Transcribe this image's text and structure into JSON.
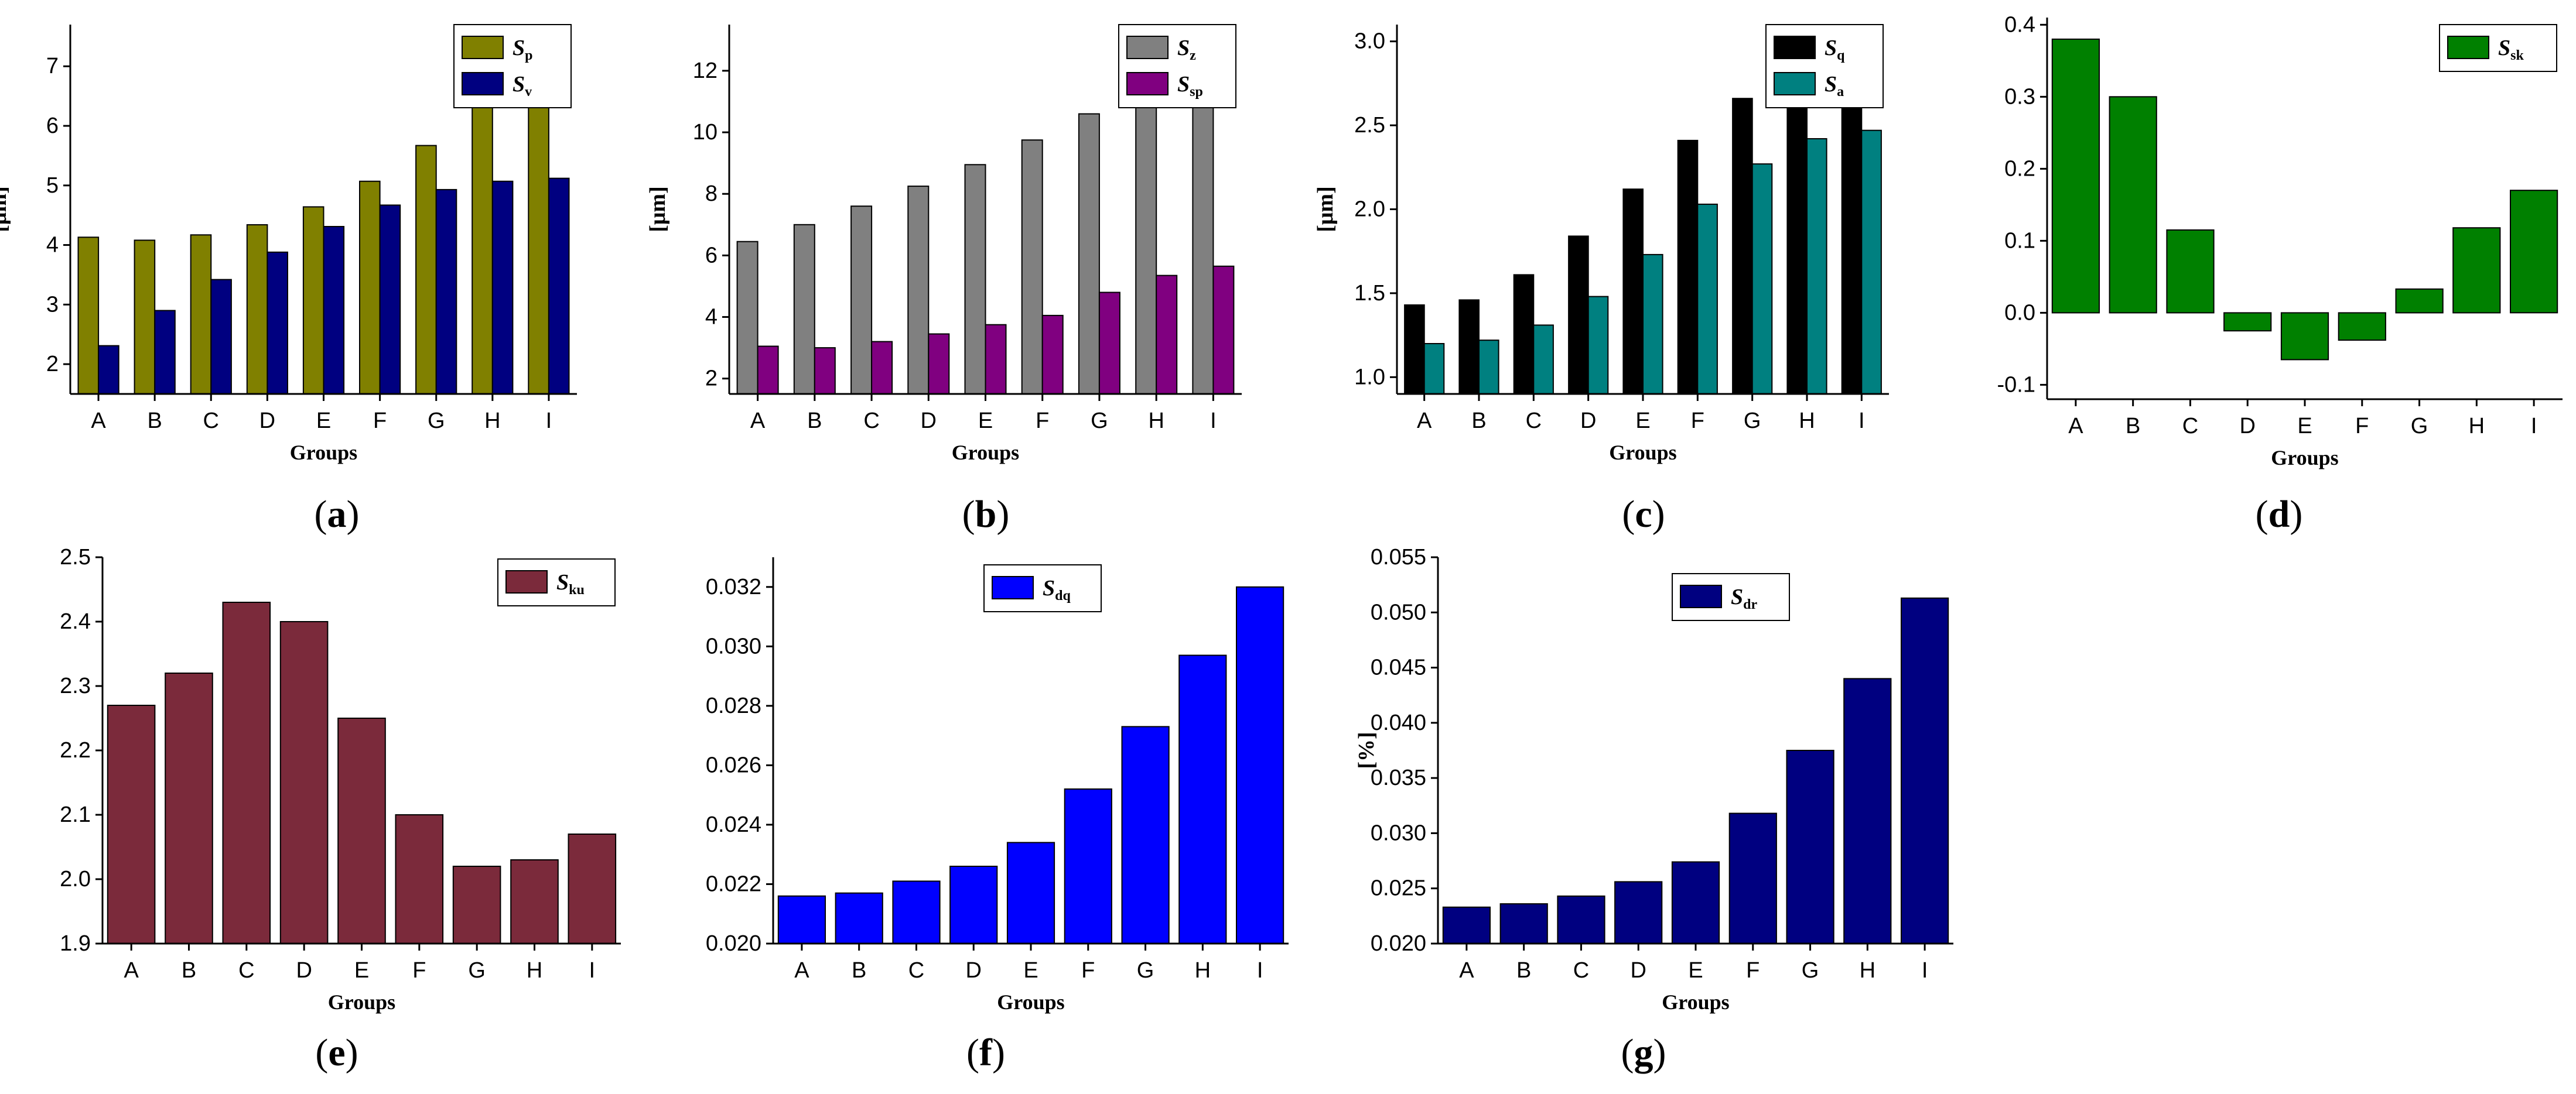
{
  "colors": {
    "a_sp": "#808000",
    "a_sv": "#000080",
    "b_sz": "#808080",
    "b_ssp": "#800080",
    "c_sq": "#000000",
    "c_sa": "#008080",
    "d_ssk": "#008000",
    "e_sku": "#7b2a3b",
    "f_sdq": "#0000ff",
    "g_sdr": "#000080"
  },
  "chart_data": [
    {
      "id": "a",
      "panel_label": "(a)",
      "type": "bar",
      "categories": [
        "A",
        "B",
        "C",
        "D",
        "E",
        "F",
        "G",
        "H",
        "I"
      ],
      "series": [
        {
          "name": "Sp",
          "sym": "S",
          "sub": "p",
          "values": [
            4.13,
            4.08,
            4.17,
            4.34,
            4.64,
            5.07,
            5.67,
            6.43,
            7.34
          ]
        },
        {
          "name": "Sv",
          "sym": "S",
          "sub": "v",
          "values": [
            2.31,
            2.9,
            3.42,
            3.88,
            4.31,
            4.67,
            4.93,
            5.07,
            5.12
          ]
        }
      ],
      "xlabel": "Groups",
      "ylabel": "[μm]",
      "ylim": [
        1.5,
        7.7
      ],
      "yticks": [
        2,
        3,
        4,
        5,
        6,
        7
      ],
      "ytick_labels": [
        "2",
        "3",
        "4",
        "5",
        "6",
        "7"
      ],
      "legend": "top-right"
    },
    {
      "id": "b",
      "panel_label": "(b)",
      "type": "bar",
      "categories": [
        "A",
        "B",
        "C",
        "D",
        "E",
        "F",
        "G",
        "H",
        "I"
      ],
      "series": [
        {
          "name": "Sz",
          "sym": "S",
          "sub": "z",
          "values": [
            6.45,
            7.0,
            7.6,
            8.25,
            8.95,
            9.75,
            10.6,
            11.5,
            12.45
          ]
        },
        {
          "name": "Ssp",
          "sym": "S",
          "sub": "sp",
          "values": [
            3.05,
            3.0,
            3.2,
            3.45,
            3.75,
            4.05,
            4.8,
            5.35,
            5.65
          ]
        }
      ],
      "xlabel": "Groups",
      "ylabel": "[μm]",
      "ylim": [
        1.5,
        13.5
      ],
      "yticks": [
        2,
        4,
        6,
        8,
        10,
        12
      ],
      "ytick_labels": [
        "2",
        "4",
        "6",
        "8",
        "10",
        "12"
      ],
      "legend": "top-right"
    },
    {
      "id": "c",
      "panel_label": "(c)",
      "type": "bar",
      "categories": [
        "A",
        "B",
        "C",
        "D",
        "E",
        "F",
        "G",
        "H",
        "I"
      ],
      "series": [
        {
          "name": "Sq",
          "sym": "S",
          "sub": "q",
          "values": [
            1.43,
            1.46,
            1.61,
            1.84,
            2.12,
            2.41,
            2.66,
            2.83,
            2.9
          ]
        },
        {
          "name": "Sa",
          "sym": "S",
          "sub": "a",
          "values": [
            1.2,
            1.22,
            1.31,
            1.48,
            1.73,
            2.03,
            2.27,
            2.42,
            2.47
          ]
        }
      ],
      "xlabel": "Groups",
      "ylabel": "[μm]",
      "ylim": [
        0.9,
        3.1
      ],
      "yticks": [
        1.0,
        1.5,
        2.0,
        2.5,
        3.0
      ],
      "ytick_labels": [
        "1.0",
        "1.5",
        "2.0",
        "2.5",
        "3.0"
      ],
      "legend": "top-right"
    },
    {
      "id": "d",
      "panel_label": "(d)",
      "type": "bar",
      "categories": [
        "A",
        "B",
        "C",
        "D",
        "E",
        "F",
        "G",
        "H",
        "I"
      ],
      "series": [
        {
          "name": "Ssk",
          "sym": "S",
          "sub": "sk",
          "values": [
            0.38,
            0.3,
            0.115,
            -0.025,
            -0.065,
            -0.038,
            0.033,
            0.118,
            0.17
          ]
        }
      ],
      "xlabel": "Groups",
      "ylabel": "",
      "ylim": [
        -0.12,
        0.41
      ],
      "yticks": [
        -0.1,
        0.0,
        0.1,
        0.2,
        0.3,
        0.4
      ],
      "ytick_labels": [
        "-0.1",
        "0.0",
        "0.1",
        "0.2",
        "0.3",
        "0.4"
      ],
      "legend": "top-right"
    },
    {
      "id": "e",
      "panel_label": "(e)",
      "type": "bar",
      "categories": [
        "A",
        "B",
        "C",
        "D",
        "E",
        "F",
        "G",
        "H",
        "I"
      ],
      "series": [
        {
          "name": "Sku",
          "sym": "S",
          "sub": "ku",
          "values": [
            2.27,
            2.32,
            2.43,
            2.4,
            2.25,
            2.1,
            2.02,
            2.03,
            2.07
          ]
        }
      ],
      "xlabel": "Groups",
      "ylabel": "",
      "ylim": [
        1.9,
        2.5
      ],
      "yticks": [
        1.9,
        2.0,
        2.1,
        2.2,
        2.3,
        2.4,
        2.5
      ],
      "ytick_labels": [
        "1.9",
        "2.0",
        "2.1",
        "2.2",
        "2.3",
        "2.4",
        "2.5"
      ],
      "legend": "top-right"
    },
    {
      "id": "f",
      "panel_label": "(f)",
      "type": "bar",
      "categories": [
        "A",
        "B",
        "C",
        "D",
        "E",
        "F",
        "G",
        "H",
        "I"
      ],
      "series": [
        {
          "name": "Sdq",
          "sym": "S",
          "sub": "dq",
          "values": [
            0.0216,
            0.0217,
            0.0221,
            0.0226,
            0.0234,
            0.0252,
            0.0273,
            0.0297,
            0.032
          ]
        }
      ],
      "xlabel": "Groups",
      "ylabel": "",
      "ylim": [
        0.02,
        0.033
      ],
      "yticks": [
        0.02,
        0.022,
        0.024,
        0.026,
        0.028,
        0.03,
        0.032
      ],
      "ytick_labels": [
        "0.020",
        "0.022",
        "0.024",
        "0.026",
        "0.028",
        "0.030",
        "0.032"
      ],
      "legend": "top-center"
    },
    {
      "id": "g",
      "panel_label": "(g)",
      "type": "bar",
      "categories": [
        "A",
        "B",
        "C",
        "D",
        "E",
        "F",
        "G",
        "H",
        "I"
      ],
      "series": [
        {
          "name": "Sdr",
          "sym": "S",
          "sub": "dr",
          "values": [
            0.0233,
            0.0236,
            0.0243,
            0.0256,
            0.0274,
            0.0318,
            0.0375,
            0.044,
            0.0513
          ]
        }
      ],
      "xlabel": "Groups",
      "ylabel": "[%]",
      "ylim": [
        0.02,
        0.055
      ],
      "yticks": [
        0.02,
        0.025,
        0.03,
        0.035,
        0.04,
        0.045,
        0.05,
        0.055
      ],
      "ytick_labels": [
        "0.020",
        "0.025",
        "0.030",
        "0.035",
        "0.040",
        "0.045",
        "0.050",
        "0.055"
      ],
      "legend": "top-center"
    }
  ]
}
